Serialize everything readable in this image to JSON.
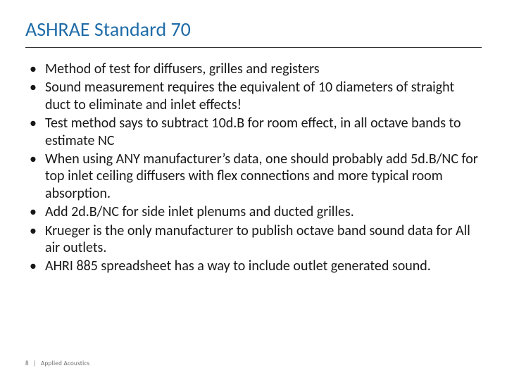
{
  "slide": {
    "title": "ASHRAE Standard 70",
    "title_color": "#1f6ca8",
    "title_fontsize": 28,
    "divider_color": "#333333",
    "body_color": "#181818",
    "body_fontsize": 20,
    "background_color": "#ffffff",
    "bullets": [
      "Method of test for diffusers, grilles and registers",
      "Sound measurement requires the equivalent of 10 diameters of straight duct to eliminate and inlet effects!",
      "Test method says to subtract 10d.B for room effect, in all octave bands to estimate NC",
      "When using ANY manufacturer’s data, one should probably add 5d.B/NC for top inlet ceiling diffusers with flex connections and more typical room absorption.",
      "Add 2d.B/NC for side inlet plenums and ducted grilles.",
      "Krueger is the only manufacturer to publish octave band sound data for All air outlets.",
      "AHRI 885 spreadsheet has a way to include outlet generated sound."
    ],
    "footer": {
      "page_number": "8",
      "separator": "|",
      "label": "Applied Acoustics",
      "fontsize": 9,
      "color": "#6b6b6b"
    }
  }
}
